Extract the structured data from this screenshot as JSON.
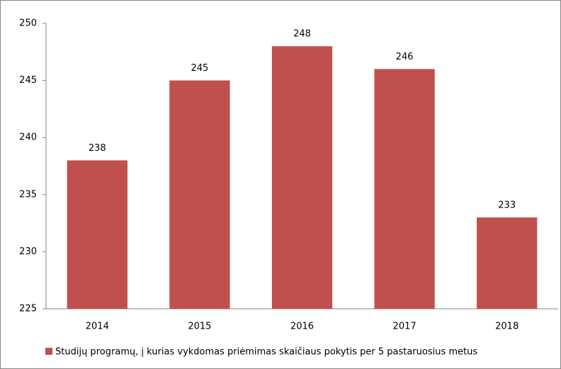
{
  "chart_data": {
    "type": "bar",
    "categories": [
      "2014",
      "2015",
      "2016",
      "2017",
      "2018"
    ],
    "values": [
      238,
      245,
      248,
      246,
      233
    ],
    "color": "#c0504d",
    "ylim": [
      225,
      250
    ],
    "yticks": [
      225,
      230,
      235,
      240,
      245,
      250
    ],
    "grid": false,
    "legend": "bottom",
    "series_name": "Studijų programų, į kurias vykdomas priėmimas skaičiaus pokytis per 5 pastaruosius metus"
  }
}
